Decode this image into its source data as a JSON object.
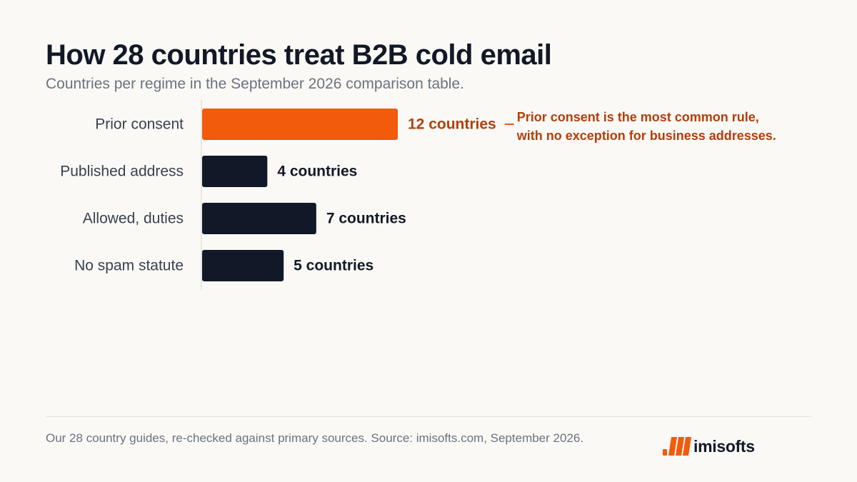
{
  "title": "How 28 countries treat B2B cold email",
  "subtitle": "Countries per regime in the September 2026 comparison table.",
  "chart_data": {
    "type": "bar",
    "orientation": "horizontal",
    "categories": [
      "Prior consent",
      "Published address",
      "Allowed, duties",
      "No spam statute"
    ],
    "values": [
      12,
      4,
      7,
      5
    ],
    "value_labels": [
      "12 countries",
      "4 countries",
      "7 countries",
      "5 countries"
    ],
    "highlight_index": 0,
    "colors": {
      "highlight": "#F25A0C",
      "highlight_label": "#B23F0B",
      "default": "#111827",
      "default_label": "#111827",
      "category_label": "#374151",
      "axis": "#D1D5DB"
    },
    "annotation": {
      "lines": [
        "Prior consent is the most common rule,",
        "with no exception for business addresses."
      ]
    },
    "xlim": [
      0,
      12
    ],
    "grid": false,
    "legend": "none"
  },
  "footer": {
    "note": "Our 28 country guides, re-checked against primary sources. Source: imisofts.com, September 2026.",
    "logo_text": "imisofts",
    "logo_color": "#F25A0C"
  }
}
